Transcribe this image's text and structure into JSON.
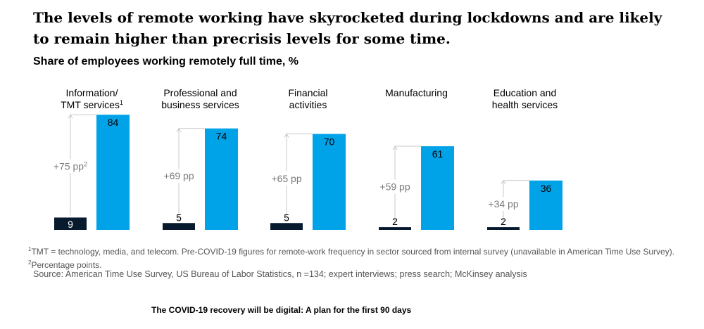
{
  "title": "The levels of remote working have skyrocketed during lockdowns and are likely to remain higher than precrisis levels for some time.",
  "subtitle": "Share of employees working remotely full time, %",
  "colors": {
    "pre": "#071a2e",
    "post": "#00a2e8",
    "arrow": "#c8c8c8",
    "diff_text": "#7a7a7a"
  },
  "chart_data": {
    "type": "bar",
    "title": "Share of employees working remotely full time, %",
    "categories": [
      {
        "lines": [
          "Information/",
          "TMT services"
        ],
        "note": "1"
      },
      {
        "lines": [
          "Professional and",
          "business services"
        ],
        "note": ""
      },
      {
        "lines": [
          "Financial",
          "activities"
        ],
        "note": ""
      },
      {
        "lines": [
          "Manufacturing"
        ],
        "note": ""
      },
      {
        "lines": [
          "Education and",
          "health services"
        ],
        "note": ""
      }
    ],
    "series": [
      {
        "values": [
          9,
          5,
          5,
          2,
          2
        ],
        "color": "#071a2e"
      },
      {
        "values": [
          84,
          74,
          70,
          61,
          36
        ],
        "color": "#00a2e8"
      }
    ],
    "differences": [
      {
        "text": "+75 pp",
        "note": "2"
      },
      {
        "text": "+69 pp",
        "note": ""
      },
      {
        "text": "+65 pp",
        "note": ""
      },
      {
        "text": "+59 pp",
        "note": ""
      },
      {
        "text": "+34 pp",
        "note": ""
      }
    ]
  },
  "footnotes": [
    {
      "mark": "1",
      "text": "TMT = technology, media, and telecom. Pre-COVID-19 figures for remote-work frequency in sector sourced from internal survey (unavailable in American Time Use Survey)."
    },
    {
      "mark": "2",
      "text": "Percentage points."
    }
  ],
  "source": "Source: American Time Use Survey, US Bureau of Labor Statistics, n =134; expert interviews; press search; McKinsey analysis",
  "publication": "The COVID-19 recovery will be digital: A plan for the first 90 days"
}
